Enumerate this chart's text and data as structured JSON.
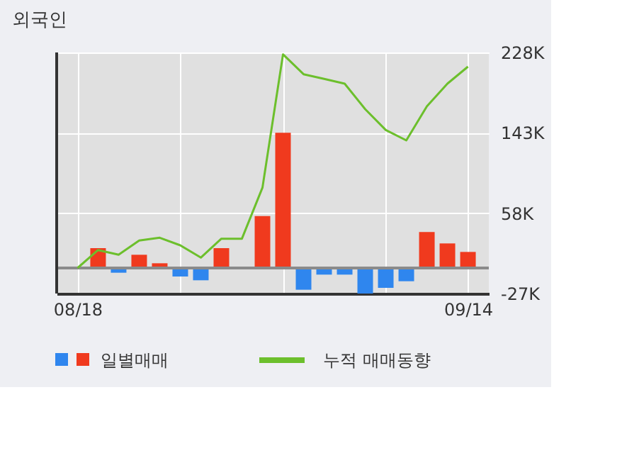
{
  "chart_data": {
    "type": "bar",
    "title": "외국인",
    "categories": [
      "08/18",
      null,
      null,
      null,
      null,
      null,
      null,
      null,
      null,
      null,
      null,
      null,
      null,
      null,
      null,
      null,
      null,
      null,
      null,
      "09/14"
    ],
    "series": [
      {
        "name": "일별매매",
        "colors": [
          "#f03a1e",
          "#f03a1e",
          "#2f86ee",
          "#f03a1e",
          "#f03a1e",
          "#2f86ee",
          "#2f86ee",
          "#f03a1e",
          "#f03a1e",
          "#f03a1e",
          "#f03a1e",
          "#2f86ee",
          "#2f86ee",
          "#2f86ee",
          "#2f86ee",
          "#2f86ee",
          "#2f86ee",
          "#f03a1e",
          "#f03a1e",
          "#f03a1e"
        ],
        "values": [
          0,
          21,
          -5,
          14,
          5,
          -9,
          -13,
          21,
          0,
          55,
          143,
          -23,
          -7,
          -7,
          -27,
          -21,
          -14,
          38,
          26,
          17
        ]
      },
      {
        "name": "누적 매매동향",
        "type": "line",
        "color": "#6cbf2c",
        "values": [
          0,
          19,
          14,
          29,
          32,
          24,
          11,
          31,
          31,
          85,
          226,
          205,
          200,
          195,
          168,
          146,
          135,
          171,
          195,
          213
        ]
      }
    ],
    "ylim": [
      -27,
      228
    ],
    "yticks": [
      {
        "value": 228,
        "label": "228K"
      },
      {
        "value": 143,
        "label": "143K"
      },
      {
        "value": 58,
        "label": "58K"
      },
      {
        "value": -27,
        "label": "-27K"
      }
    ],
    "ref_lines": [
      {
        "axis": "y",
        "value": 0,
        "color": "#8a8a8a"
      }
    ],
    "grid": true,
    "legend": "bottom"
  }
}
